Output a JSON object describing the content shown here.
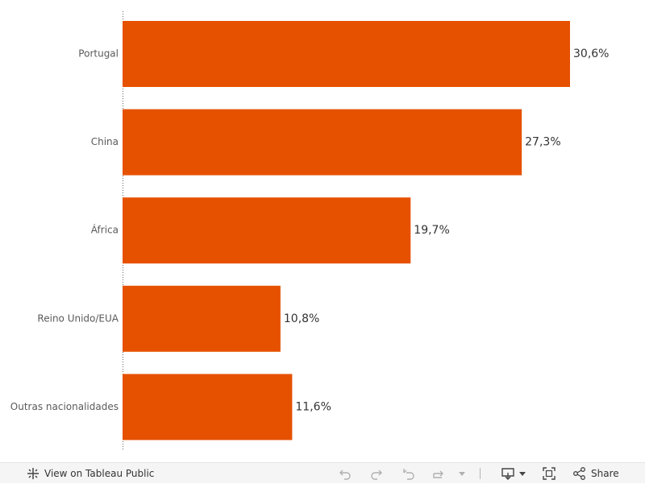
{
  "chart_data": {
    "type": "bar",
    "orientation": "horizontal",
    "categories": [
      "Portugal",
      "China",
      "África",
      "Reino Unido/EUA",
      "Outras nacionalidades"
    ],
    "values": [
      30.6,
      27.3,
      19.7,
      10.8,
      11.6
    ],
    "value_labels": [
      "30,6%",
      "27,3%",
      "19,7%",
      "10,8%",
      "11,6%"
    ],
    "bar_color": "#e65100",
    "grid": false
  },
  "toolbar": {
    "view_label": "View on Tableau Public",
    "share_label": "Share",
    "icons": [
      "tableau-logo-icon",
      "undo-icon",
      "redo-icon",
      "revert-icon",
      "refresh-icon",
      "pause-dropdown-icon",
      "download-icon",
      "fullscreen-icon",
      "share-icon"
    ]
  }
}
